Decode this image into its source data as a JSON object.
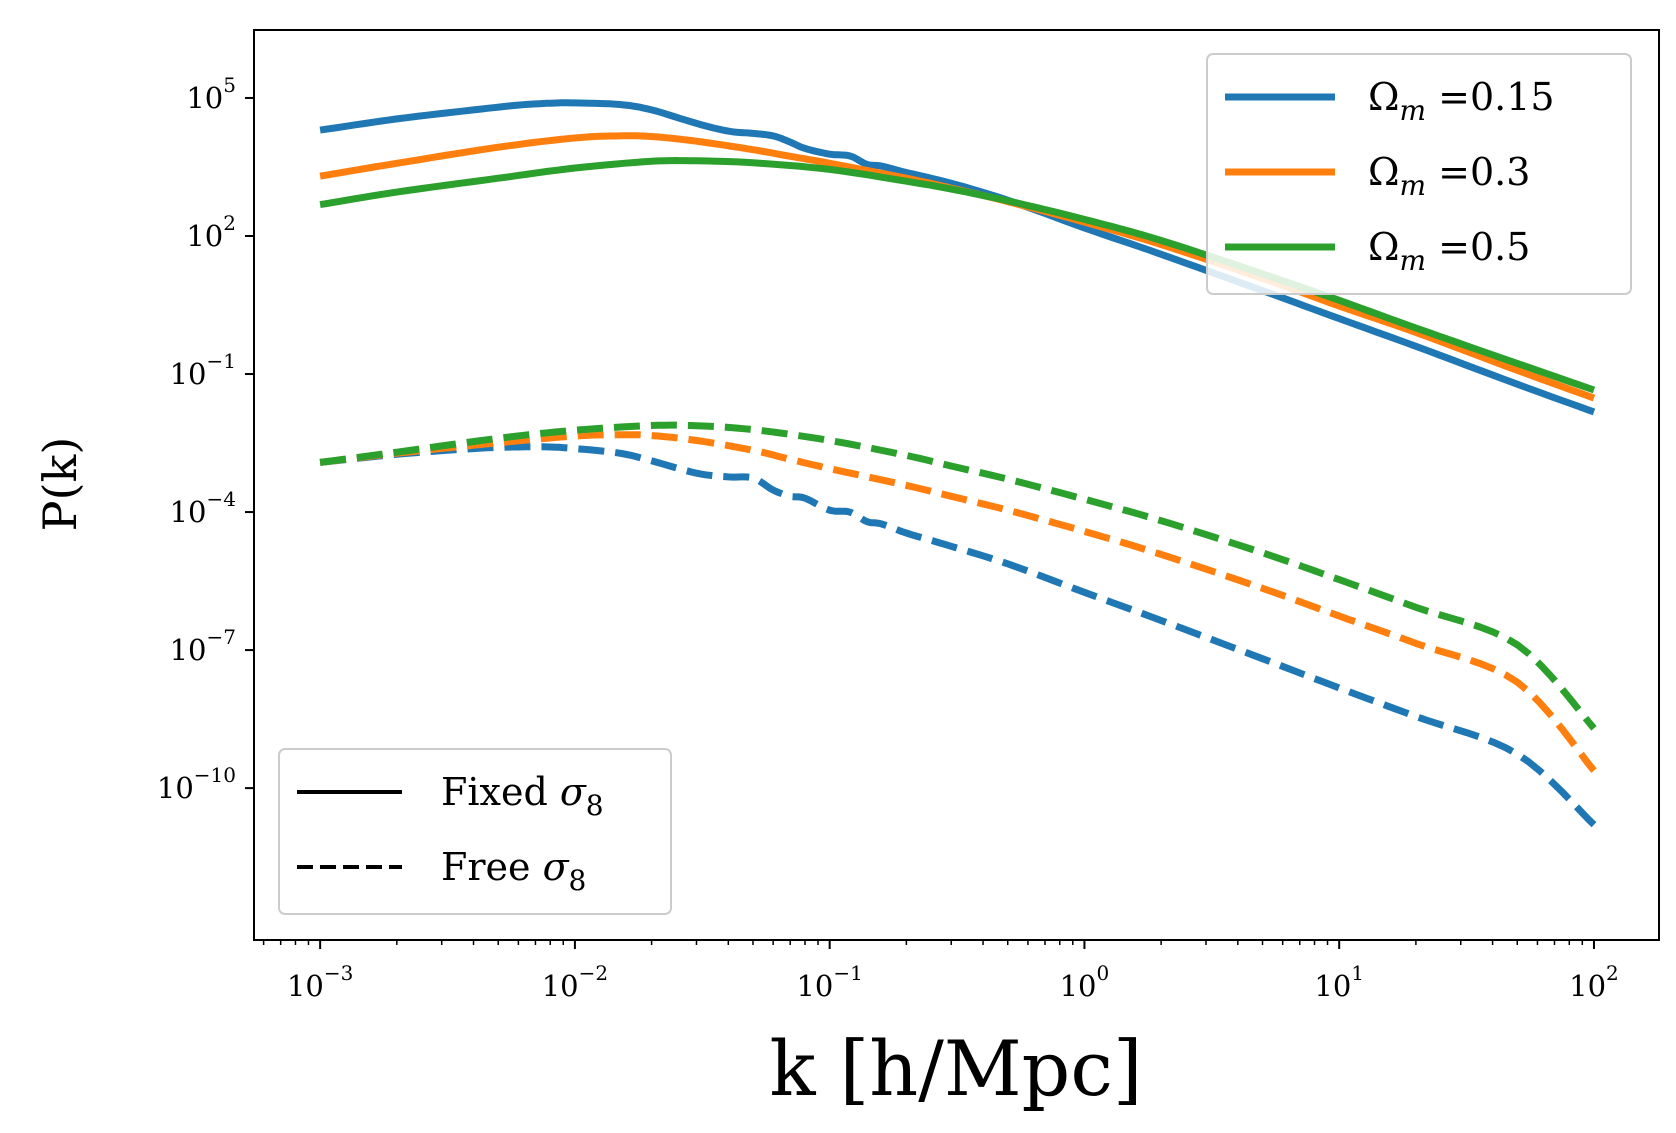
{
  "chart_data": {
    "type": "line",
    "xlabel": "k [h/Mpc]",
    "ylabel": "P(k)",
    "xscale": "log",
    "yscale": "log",
    "xlim": [
      0.00055,
      180
    ],
    "ylim": [
      5e-14,
      3000000.0
    ],
    "x_ticks": [
      {
        "value": 0.001,
        "base": "10",
        "exp": "−3"
      },
      {
        "value": 0.01,
        "base": "10",
        "exp": "−2"
      },
      {
        "value": 0.1,
        "base": "10",
        "exp": "−1"
      },
      {
        "value": 1,
        "base": "10",
        "exp": "0"
      },
      {
        "value": 10,
        "base": "10",
        "exp": "1"
      },
      {
        "value": 100,
        "base": "10",
        "exp": "2"
      }
    ],
    "y_ticks": [
      {
        "value": 100000.0,
        "base": "10",
        "exp": "5"
      },
      {
        "value": 100.0,
        "base": "10",
        "exp": "2"
      },
      {
        "value": 0.1,
        "base": "10",
        "exp": "−1"
      },
      {
        "value": 0.0001,
        "base": "10",
        "exp": "−4"
      },
      {
        "value": 1e-07,
        "base": "10",
        "exp": "−7"
      },
      {
        "value": 1e-10,
        "base": "10",
        "exp": "−10"
      }
    ],
    "grid": false,
    "colors_legend": {
      "placement": "top-right",
      "entries": [
        {
          "label_prefix": "Ω",
          "label_sub": "m",
          "label_suffix": " =0.15",
          "color": "#1f77b4"
        },
        {
          "label_prefix": "Ω",
          "label_sub": "m",
          "label_suffix": " =0.3",
          "color": "#ff7f0e"
        },
        {
          "label_prefix": "Ω",
          "label_sub": "m",
          "label_suffix": " =0.5",
          "color": "#2ca02c"
        }
      ]
    },
    "style_legend": {
      "placement": "bottom-left",
      "entries": [
        {
          "label_prefix": "Fixed ",
          "label_symbol": "σ",
          "label_sub": "8",
          "linestyle": "solid"
        },
        {
          "label_prefix": "Free ",
          "label_symbol": "σ",
          "label_sub": "8",
          "linestyle": "dashed"
        }
      ]
    },
    "series": [
      {
        "color": "#1f77b4",
        "linestyle": "solid",
        "x": [
          0.001,
          0.002,
          0.004,
          0.006,
          0.008,
          0.01,
          0.015,
          0.02,
          0.03,
          0.04,
          0.05,
          0.06,
          0.07,
          0.08,
          0.1,
          0.12,
          0.14,
          0.16,
          0.2,
          0.3,
          0.5,
          1,
          2,
          5,
          10,
          20,
          50,
          100
        ],
        "y": [
          20000,
          35000,
          55000,
          70000,
          77000,
          78000,
          72000,
          55000,
          28000,
          19000,
          17000,
          15000,
          11000,
          8000,
          6000,
          5500,
          3600,
          3300,
          2400,
          1400,
          600,
          150,
          40,
          6.5,
          1.6,
          0.4,
          0.06,
          0.015
        ]
      },
      {
        "color": "#ff7f0e",
        "linestyle": "solid",
        "x": [
          0.001,
          0.002,
          0.005,
          0.01,
          0.015,
          0.02,
          0.03,
          0.05,
          0.07,
          0.1,
          0.2,
          0.3,
          0.5,
          1,
          2,
          5,
          10,
          20,
          50,
          100
        ],
        "y": [
          2000,
          3800,
          8500,
          13500,
          15000,
          14500,
          11500,
          7500,
          5400,
          3800,
          1800,
          1100,
          560,
          200,
          65,
          12,
          3,
          0.8,
          0.12,
          0.03
        ]
      },
      {
        "color": "#2ca02c",
        "linestyle": "solid",
        "x": [
          0.001,
          0.002,
          0.005,
          0.01,
          0.02,
          0.03,
          0.05,
          0.1,
          0.2,
          0.3,
          0.5,
          1,
          2,
          5,
          10,
          20,
          50,
          100
        ],
        "y": [
          480,
          900,
          1800,
          3000,
          4200,
          4300,
          3900,
          2800,
          1550,
          1050,
          580,
          230,
          80,
          15,
          4,
          1,
          0.17,
          0.045
        ]
      },
      {
        "color": "#1f77b4",
        "linestyle": "dashed",
        "x": [
          0.001,
          0.002,
          0.004,
          0.006,
          0.008,
          0.01,
          0.015,
          0.02,
          0.03,
          0.04,
          0.05,
          0.06,
          0.07,
          0.08,
          0.1,
          0.12,
          0.14,
          0.16,
          0.2,
          0.3,
          0.5,
          1,
          2,
          5,
          10,
          20,
          50,
          100
        ],
        "y": [
          0.0012,
          0.0018,
          0.0024,
          0.0026,
          0.0026,
          0.0024,
          0.0019,
          0.0013,
          0.0007,
          0.00058,
          0.00055,
          0.0003,
          0.00022,
          0.0002,
          0.00011,
          0.0001,
          6.2e-05,
          5.5e-05,
          3.5e-05,
          1.8e-05,
          7.5e-06,
          1.8e-06,
          4.4e-07,
          6.5e-08,
          1.5e-08,
          3.6e-09,
          5.5e-10,
          1.6e-11
        ]
      },
      {
        "color": "#ff7f0e",
        "linestyle": "dashed",
        "x": [
          0.001,
          0.002,
          0.005,
          0.01,
          0.015,
          0.02,
          0.03,
          0.05,
          0.07,
          0.1,
          0.2,
          0.3,
          0.5,
          1,
          2,
          5,
          10,
          20,
          50,
          100
        ],
        "y": [
          0.0012,
          0.0019,
          0.0032,
          0.0045,
          0.0048,
          0.0046,
          0.0036,
          0.0022,
          0.0014,
          0.00088,
          0.00038,
          0.00022,
          0.00011,
          3.8e-05,
          1.2e-05,
          2.2e-06,
          5.5e-07,
          1.4e-07,
          2e-08,
          2.4e-10
        ]
      },
      {
        "color": "#2ca02c",
        "linestyle": "dashed",
        "x": [
          0.001,
          0.002,
          0.005,
          0.01,
          0.02,
          0.03,
          0.05,
          0.1,
          0.2,
          0.3,
          0.5,
          1,
          2,
          5,
          10,
          20,
          50,
          100
        ],
        "y": [
          0.0012,
          0.002,
          0.004,
          0.006,
          0.0076,
          0.0075,
          0.0062,
          0.0036,
          0.0017,
          0.001,
          0.00052,
          0.00019,
          6.5e-05,
          1.3e-05,
          3.4e-06,
          8.5e-07,
          1.3e-07,
          2e-09
        ]
      }
    ]
  }
}
